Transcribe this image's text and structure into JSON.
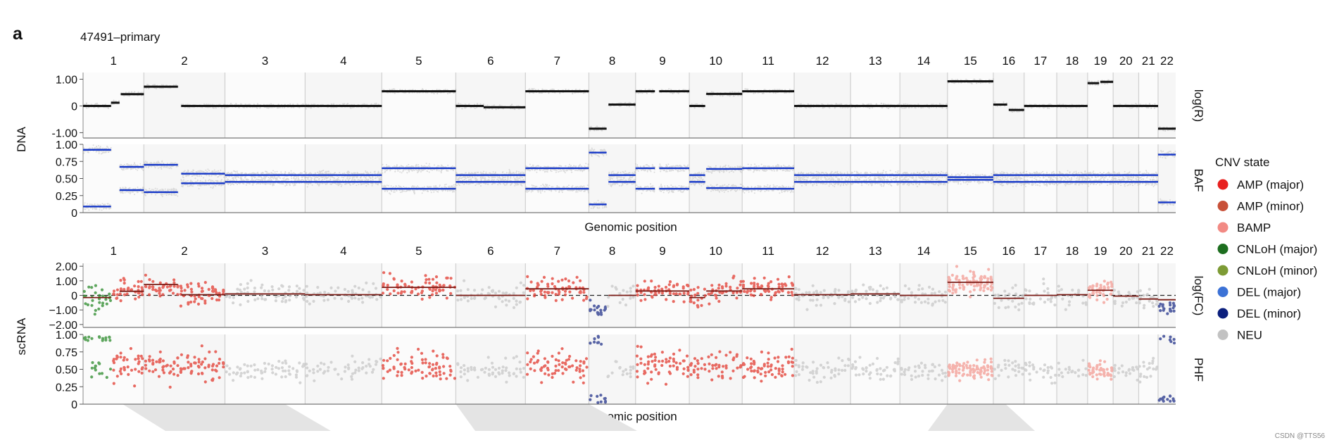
{
  "figure": {
    "panel_letter": "a",
    "sample_title": "47491–primary",
    "watermark": "CSDN @TTS56"
  },
  "chart_data": {
    "type": "scatter",
    "chromosomes": [
      "1",
      "2",
      "3",
      "4",
      "5",
      "6",
      "7",
      "8",
      "9",
      "10",
      "11",
      "12",
      "13",
      "14",
      "15",
      "16",
      "17",
      "18",
      "19",
      "20",
      "21",
      "22"
    ],
    "chrom_widths": [
      69,
      92,
      91,
      87,
      84,
      79,
      72,
      53,
      61,
      60,
      59,
      64,
      56,
      54,
      52,
      35,
      37,
      35,
      29,
      29,
      22,
      20
    ],
    "x_label": "Genomic position",
    "dna": {
      "group_label": "DNA",
      "logR": {
        "label": "log(R)",
        "ylim": [
          -1.2,
          1.25
        ],
        "ticks": [
          1.0,
          0,
          -1.0
        ],
        "tick_labels": [
          "1.00",
          "0",
          "-1.00"
        ],
        "segments": [
          {
            "chrom": "1",
            "start": 0.0,
            "end": 0.46,
            "value": 0.0
          },
          {
            "chrom": "1",
            "start": 0.46,
            "end": 0.6,
            "value": 0.12
          },
          {
            "chrom": "1",
            "start": 0.62,
            "end": 1.0,
            "value": 0.44
          },
          {
            "chrom": "2",
            "start": 0.0,
            "end": 0.42,
            "value": 0.72
          },
          {
            "chrom": "2",
            "start": 0.46,
            "end": 1.0,
            "value": 0.0
          },
          {
            "chrom": "3",
            "start": 0.0,
            "end": 1.0,
            "value": 0.0
          },
          {
            "chrom": "4",
            "start": 0.0,
            "end": 1.0,
            "value": 0.0
          },
          {
            "chrom": "5",
            "start": 0.0,
            "end": 1.0,
            "value": 0.55
          },
          {
            "chrom": "6",
            "start": 0.0,
            "end": 0.4,
            "value": 0.0
          },
          {
            "chrom": "6",
            "start": 0.4,
            "end": 1.0,
            "value": -0.05
          },
          {
            "chrom": "7",
            "start": 0.0,
            "end": 1.0,
            "value": 0.55
          },
          {
            "chrom": "8",
            "start": 0.0,
            "end": 0.38,
            "value": -0.85
          },
          {
            "chrom": "8",
            "start": 0.42,
            "end": 1.0,
            "value": 0.05
          },
          {
            "chrom": "9",
            "start": 0.0,
            "end": 0.36,
            "value": 0.55
          },
          {
            "chrom": "9",
            "start": 0.44,
            "end": 1.0,
            "value": 0.55
          },
          {
            "chrom": "10",
            "start": 0.0,
            "end": 0.3,
            "value": 0.0
          },
          {
            "chrom": "10",
            "start": 0.32,
            "end": 1.0,
            "value": 0.45
          },
          {
            "chrom": "11",
            "start": 0.0,
            "end": 1.0,
            "value": 0.55
          },
          {
            "chrom": "12",
            "start": 0.0,
            "end": 1.0,
            "value": 0.0
          },
          {
            "chrom": "13",
            "start": 0.0,
            "end": 1.0,
            "value": 0.0
          },
          {
            "chrom": "14",
            "start": 0.0,
            "end": 1.0,
            "value": 0.0
          },
          {
            "chrom": "15",
            "start": 0.0,
            "end": 1.0,
            "value": 0.92
          },
          {
            "chrom": "16",
            "start": 0.0,
            "end": 0.45,
            "value": 0.05
          },
          {
            "chrom": "16",
            "start": 0.5,
            "end": 1.0,
            "value": -0.15
          },
          {
            "chrom": "17",
            "start": 0.0,
            "end": 1.0,
            "value": 0.0
          },
          {
            "chrom": "18",
            "start": 0.0,
            "end": 1.0,
            "value": 0.0
          },
          {
            "chrom": "19",
            "start": 0.0,
            "end": 0.45,
            "value": 0.85
          },
          {
            "chrom": "19",
            "start": 0.5,
            "end": 1.0,
            "value": 0.9
          },
          {
            "chrom": "20",
            "start": 0.0,
            "end": 1.0,
            "value": 0.0
          },
          {
            "chrom": "21",
            "start": 0.0,
            "end": 1.0,
            "value": 0.0
          },
          {
            "chrom": "22",
            "start": 0.0,
            "end": 0.5,
            "value": -0.85
          },
          {
            "chrom": "22",
            "start": 0.5,
            "end": 1.0,
            "value": -0.85
          }
        ]
      },
      "baf": {
        "label": "BAF",
        "ylim": [
          0,
          1.0
        ],
        "ticks": [
          1.0,
          0.75,
          0.5,
          0.25,
          0
        ],
        "tick_labels": [
          "1.00",
          "0.75",
          "0.50",
          "0.25",
          "0"
        ],
        "lines": [
          {
            "chrom": "1",
            "start": 0.0,
            "end": 0.46,
            "values": [
              0.92,
              0.09
            ]
          },
          {
            "chrom": "1",
            "start": 0.6,
            "end": 1.0,
            "values": [
              0.67,
              0.33
            ]
          },
          {
            "chrom": "2",
            "start": 0.0,
            "end": 0.42,
            "values": [
              0.7,
              0.3
            ]
          },
          {
            "chrom": "2",
            "start": 0.46,
            "end": 1.0,
            "values": [
              0.57,
              0.43
            ]
          },
          {
            "chrom": "3",
            "start": 0.0,
            "end": 1.0,
            "values": [
              0.55,
              0.45
            ]
          },
          {
            "chrom": "4",
            "start": 0.0,
            "end": 1.0,
            "values": [
              0.55,
              0.45
            ]
          },
          {
            "chrom": "5",
            "start": 0.0,
            "end": 1.0,
            "values": [
              0.65,
              0.35
            ]
          },
          {
            "chrom": "6",
            "start": 0.0,
            "end": 1.0,
            "values": [
              0.55,
              0.45
            ]
          },
          {
            "chrom": "7",
            "start": 0.0,
            "end": 1.0,
            "values": [
              0.65,
              0.35
            ]
          },
          {
            "chrom": "8",
            "start": 0.0,
            "end": 0.38,
            "values": [
              0.88,
              0.12
            ]
          },
          {
            "chrom": "8",
            "start": 0.42,
            "end": 1.0,
            "values": [
              0.55,
              0.45
            ]
          },
          {
            "chrom": "9",
            "start": 0.0,
            "end": 0.36,
            "values": [
              0.65,
              0.35
            ]
          },
          {
            "chrom": "9",
            "start": 0.44,
            "end": 1.0,
            "values": [
              0.65,
              0.35
            ]
          },
          {
            "chrom": "10",
            "start": 0.0,
            "end": 0.3,
            "values": [
              0.55,
              0.45
            ]
          },
          {
            "chrom": "10",
            "start": 0.32,
            "end": 1.0,
            "values": [
              0.64,
              0.36
            ]
          },
          {
            "chrom": "11",
            "start": 0.0,
            "end": 1.0,
            "values": [
              0.65,
              0.35
            ]
          },
          {
            "chrom": "12",
            "start": 0.0,
            "end": 1.0,
            "values": [
              0.55,
              0.45
            ]
          },
          {
            "chrom": "13",
            "start": 0.0,
            "end": 1.0,
            "values": [
              0.55,
              0.45
            ]
          },
          {
            "chrom": "14",
            "start": 0.0,
            "end": 1.0,
            "values": [
              0.55,
              0.45
            ]
          },
          {
            "chrom": "15",
            "start": 0.0,
            "end": 1.0,
            "values": [
              0.52,
              0.48
            ]
          },
          {
            "chrom": "16",
            "start": 0.0,
            "end": 1.0,
            "values": [
              0.55,
              0.45
            ]
          },
          {
            "chrom": "17",
            "start": 0.0,
            "end": 1.0,
            "values": [
              0.55,
              0.45
            ]
          },
          {
            "chrom": "18",
            "start": 0.0,
            "end": 1.0,
            "values": [
              0.55,
              0.45
            ]
          },
          {
            "chrom": "19",
            "start": 0.0,
            "end": 1.0,
            "values": [
              0.55,
              0.45
            ]
          },
          {
            "chrom": "20",
            "start": 0.0,
            "end": 1.0,
            "values": [
              0.55,
              0.45
            ]
          },
          {
            "chrom": "21",
            "start": 0.0,
            "end": 1.0,
            "values": [
              0.55,
              0.45
            ]
          },
          {
            "chrom": "22",
            "start": 0.0,
            "end": 1.0,
            "values": [
              0.85,
              0.15
            ]
          }
        ]
      }
    },
    "scrna": {
      "group_label": "scRNA",
      "logfc": {
        "label": "log(FC)",
        "ylim": [
          -2.2,
          2.2
        ],
        "ticks": [
          2.0,
          1.0,
          0,
          -1.0,
          -2.0
        ],
        "tick_labels": [
          "2.00",
          "1.00",
          "0",
          "−1.00",
          "−2.00"
        ],
        "chrom_states": [
          "CNLoH (major)",
          "AMP (minor)",
          "AMP (minor)",
          "NEU",
          "NEU",
          "AMP (minor)",
          "NEU",
          "AMP (minor)",
          "DEL (minor)",
          "AMP (minor)",
          "AMP (minor)",
          "AMP (minor)",
          "NEU",
          "NEU",
          "NEU",
          "BAMP",
          "NEU",
          "NEU",
          "NEU",
          "BAMP",
          "NEU",
          "NEU",
          "DEL (minor)"
        ],
        "segments": [
          {
            "chrom": "1",
            "start": 0.0,
            "end": 0.46,
            "value": -0.15
          },
          {
            "chrom": "1",
            "start": 0.6,
            "end": 1.0,
            "value": 0.28
          },
          {
            "chrom": "2",
            "start": 0.0,
            "end": 0.42,
            "value": 0.75
          },
          {
            "chrom": "2",
            "start": 0.46,
            "end": 1.0,
            "value": 0.05
          },
          {
            "chrom": "3",
            "start": 0.0,
            "end": 1.0,
            "value": 0.1
          },
          {
            "chrom": "4",
            "start": 0.0,
            "end": 1.0,
            "value": 0.05
          },
          {
            "chrom": "5",
            "start": 0.0,
            "end": 1.0,
            "value": 0.55
          },
          {
            "chrom": "6",
            "start": 0.0,
            "end": 1.0,
            "value": 0.0
          },
          {
            "chrom": "7",
            "start": 0.0,
            "end": 1.0,
            "value": 0.45
          },
          {
            "chrom": "8",
            "start": 0.42,
            "end": 1.0,
            "value": 0.0
          },
          {
            "chrom": "9",
            "start": 0.0,
            "end": 1.0,
            "value": 0.3
          },
          {
            "chrom": "10",
            "start": 0.0,
            "end": 0.3,
            "value": -0.15
          },
          {
            "chrom": "10",
            "start": 0.32,
            "end": 1.0,
            "value": 0.3
          },
          {
            "chrom": "11",
            "start": 0.0,
            "end": 1.0,
            "value": 0.45
          },
          {
            "chrom": "12",
            "start": 0.0,
            "end": 1.0,
            "value": 0.05
          },
          {
            "chrom": "13",
            "start": 0.0,
            "end": 1.0,
            "value": 0.1
          },
          {
            "chrom": "14",
            "start": 0.0,
            "end": 1.0,
            "value": 0.0
          },
          {
            "chrom": "15",
            "start": 0.0,
            "end": 1.0,
            "value": 0.9
          },
          {
            "chrom": "16",
            "start": 0.0,
            "end": 1.0,
            "value": -0.2
          },
          {
            "chrom": "17",
            "start": 0.0,
            "end": 1.0,
            "value": 0.0
          },
          {
            "chrom": "18",
            "start": 0.0,
            "end": 1.0,
            "value": 0.05
          },
          {
            "chrom": "19",
            "start": 0.0,
            "end": 1.0,
            "value": 0.35
          },
          {
            "chrom": "20",
            "start": 0.0,
            "end": 1.0,
            "value": -0.05
          },
          {
            "chrom": "21",
            "start": 0.0,
            "end": 1.0,
            "value": -0.25
          },
          {
            "chrom": "22",
            "start": 0.0,
            "end": 1.0,
            "value": -0.3
          }
        ]
      },
      "phf": {
        "label": "PHF",
        "ylim": [
          0,
          1.0
        ],
        "ticks": [
          1.0,
          0.75,
          0.5,
          0.25,
          0
        ],
        "tick_labels": [
          "1.00",
          "0.75",
          "0.50",
          "0.25",
          "0"
        ]
      }
    },
    "legend": {
      "title": "CNV state",
      "position": "right",
      "entries": [
        {
          "label": "AMP (major)",
          "color": "#e8201e"
        },
        {
          "label": "AMP (minor)",
          "color": "#c85038"
        },
        {
          "label": "BAMP",
          "color": "#f28a84"
        },
        {
          "label": "CNLoH (major)",
          "color": "#1d6e1f"
        },
        {
          "label": "CNLoH (minor)",
          "color": "#7d9b35"
        },
        {
          "label": "DEL (major)",
          "color": "#3c72d6"
        },
        {
          "label": "DEL (minor)",
          "color": "#0b1f7d"
        },
        {
          "label": "NEU",
          "color": "#c2c2c2"
        }
      ]
    },
    "colors": {
      "dna_points": "#bdbdbd",
      "dna_segment": "#111111",
      "baf_line": "#1537c8",
      "neutral_line": "#222222",
      "separator": "#d0d0d0",
      "amp_scatter": "#e23a30",
      "bamp_scatter": "#f39b93",
      "neu_scatter": "#c8c8c8",
      "del_minor_scatter": "#23338a",
      "cnloh_major_scatter": "#2a8a2a",
      "cnloh_minor_scatter": "#8ca83e"
    }
  }
}
